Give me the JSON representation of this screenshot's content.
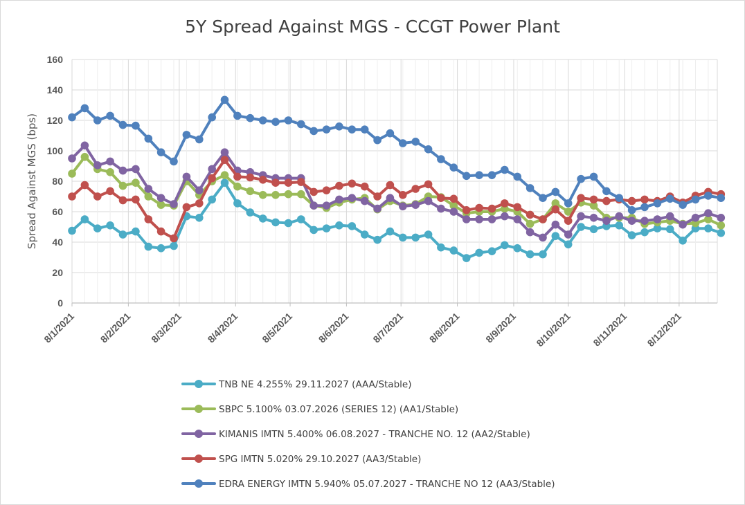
{
  "chart_data": {
    "type": "line",
    "title": "5Y Spread Against MGS - CCGT Power Plant",
    "ylabel": "Spread Against MGS (bps)",
    "xlabel": "",
    "ylim": [
      0,
      160
    ],
    "yticks": [
      "0",
      "20",
      "40",
      "60",
      "80",
      "100",
      "120",
      "140",
      "160"
    ],
    "xticks": [
      "8/1/2021",
      "8/2/2021",
      "8/3/2021",
      "8/4/2021",
      "8/5/2021",
      "8/6/2021",
      "8/7/2021",
      "8/8/2021",
      "8/9/2021",
      "8/10/2021",
      "8/11/2021",
      "8/12/2021"
    ],
    "grid": true,
    "legend_position": "bottom",
    "x_start": "2021-01-08",
    "x_end": "2021-12-29",
    "x_tick_dates": [
      "2021-01-08",
      "2021-02-08",
      "2021-03-08",
      "2021-04-08",
      "2021-05-08",
      "2021-06-08",
      "2021-07-08",
      "2021-08-08",
      "2021-09-08",
      "2021-10-08",
      "2021-11-08",
      "2021-12-08"
    ],
    "series": [
      {
        "name": "TNB NE 4.255% 29.11.2027 (AAA/Stable)",
        "color": "#4bacc6",
        "points": [
          [
            "2021-01-08",
            47.5
          ],
          [
            "2021-01-15",
            55
          ],
          [
            "2021-01-22",
            49
          ],
          [
            "2021-01-29",
            51
          ],
          [
            "2021-02-05",
            45
          ],
          [
            "2021-02-12",
            47
          ],
          [
            "2021-02-19",
            37
          ],
          [
            "2021-02-26",
            36
          ],
          [
            "2021-03-05",
            37.5
          ],
          [
            "2021-03-12",
            57
          ],
          [
            "2021-03-19",
            56
          ],
          [
            "2021-03-26",
            68
          ],
          [
            "2021-04-02",
            79
          ],
          [
            "2021-04-09",
            65.5
          ],
          [
            "2021-04-16",
            59.5
          ],
          [
            "2021-04-23",
            55.5
          ],
          [
            "2021-04-30",
            53
          ],
          [
            "2021-05-07",
            52.5
          ],
          [
            "2021-05-14",
            55
          ],
          [
            "2021-05-21",
            48
          ],
          [
            "2021-05-28",
            49
          ],
          [
            "2021-06-04",
            51
          ],
          [
            "2021-06-11",
            50.5
          ],
          [
            "2021-06-18",
            45
          ],
          [
            "2021-06-25",
            41.5
          ],
          [
            "2021-07-02",
            47
          ],
          [
            "2021-07-09",
            43
          ],
          [
            "2021-07-16",
            43
          ],
          [
            "2021-07-23",
            45
          ],
          [
            "2021-07-30",
            36.5
          ],
          [
            "2021-08-06",
            34.5
          ],
          [
            "2021-08-13",
            29.5
          ],
          [
            "2021-08-20",
            33
          ],
          [
            "2021-08-27",
            34
          ],
          [
            "2021-09-03",
            38
          ],
          [
            "2021-09-10",
            36
          ],
          [
            "2021-09-17",
            32
          ],
          [
            "2021-09-24",
            32
          ],
          [
            "2021-10-01",
            44
          ],
          [
            "2021-10-08",
            38.5
          ],
          [
            "2021-10-15",
            50
          ],
          [
            "2021-10-22",
            48.5
          ],
          [
            "2021-10-29",
            50.5
          ],
          [
            "2021-11-05",
            51
          ],
          [
            "2021-11-12",
            44.5
          ],
          [
            "2021-11-19",
            46.5
          ],
          [
            "2021-11-26",
            49
          ],
          [
            "2021-12-03",
            48.5
          ],
          [
            "2021-12-10",
            41
          ],
          [
            "2021-12-17",
            49
          ],
          [
            "2021-12-24",
            49
          ],
          [
            "2021-12-31",
            46
          ]
        ]
      },
      {
        "name": "SBPC 5.100% 03.07.2026 (SERIES 12) (AA1/Stable)",
        "color": "#9bbb59",
        "points": [
          [
            "2021-01-08",
            85
          ],
          [
            "2021-01-15",
            96
          ],
          [
            "2021-01-22",
            88
          ],
          [
            "2021-01-29",
            86
          ],
          [
            "2021-02-05",
            77
          ],
          [
            "2021-02-12",
            79
          ],
          [
            "2021-02-19",
            70
          ],
          [
            "2021-02-26",
            64.5
          ],
          [
            "2021-03-05",
            64
          ],
          [
            "2021-03-12",
            80
          ],
          [
            "2021-03-19",
            71
          ],
          [
            "2021-03-26",
            80
          ],
          [
            "2021-04-02",
            84
          ],
          [
            "2021-04-09",
            76.5
          ],
          [
            "2021-04-16",
            73.5
          ],
          [
            "2021-04-23",
            71
          ],
          [
            "2021-04-30",
            71
          ],
          [
            "2021-05-07",
            71.5
          ],
          [
            "2021-05-14",
            71.5
          ],
          [
            "2021-05-21",
            64
          ],
          [
            "2021-05-28",
            62.5
          ],
          [
            "2021-06-04",
            66
          ],
          [
            "2021-06-11",
            68
          ],
          [
            "2021-06-18",
            69
          ],
          [
            "2021-06-25",
            61.5
          ],
          [
            "2021-07-02",
            67
          ],
          [
            "2021-07-09",
            64
          ],
          [
            "2021-07-16",
            65
          ],
          [
            "2021-07-23",
            70
          ],
          [
            "2021-07-30",
            69.5
          ],
          [
            "2021-08-06",
            64
          ],
          [
            "2021-08-13",
            59
          ],
          [
            "2021-08-20",
            60
          ],
          [
            "2021-08-27",
            60
          ],
          [
            "2021-09-03",
            62
          ],
          [
            "2021-09-10",
            60
          ],
          [
            "2021-09-17",
            52
          ],
          [
            "2021-09-24",
            55
          ],
          [
            "2021-10-01",
            65.5
          ],
          [
            "2021-10-08",
            60
          ],
          [
            "2021-10-15",
            66
          ],
          [
            "2021-10-22",
            64
          ],
          [
            "2021-10-29",
            56
          ],
          [
            "2021-11-05",
            56
          ],
          [
            "2021-11-12",
            56
          ],
          [
            "2021-11-19",
            52
          ],
          [
            "2021-11-26",
            53
          ],
          [
            "2021-12-03",
            54
          ],
          [
            "2021-12-10",
            52
          ],
          [
            "2021-12-17",
            52.5
          ],
          [
            "2021-12-24",
            55
          ],
          [
            "2021-12-31",
            51
          ]
        ]
      },
      {
        "name": "KIMANIS IMTN 5.400% 06.08.2027 - TRANCHE NO. 12 (AA2/Stable)",
        "color": "#8064a2",
        "points": [
          [
            "2021-01-08",
            95
          ],
          [
            "2021-01-15",
            103.5
          ],
          [
            "2021-01-22",
            90.5
          ],
          [
            "2021-01-29",
            93
          ],
          [
            "2021-02-05",
            87
          ],
          [
            "2021-02-12",
            88
          ],
          [
            "2021-02-19",
            75
          ],
          [
            "2021-02-26",
            69
          ],
          [
            "2021-03-05",
            65
          ],
          [
            "2021-03-12",
            83
          ],
          [
            "2021-03-19",
            74
          ],
          [
            "2021-03-26",
            88
          ],
          [
            "2021-04-02",
            99
          ],
          [
            "2021-04-09",
            87
          ],
          [
            "2021-04-16",
            86
          ],
          [
            "2021-04-23",
            84
          ],
          [
            "2021-04-30",
            82
          ],
          [
            "2021-05-07",
            82
          ],
          [
            "2021-05-14",
            82
          ],
          [
            "2021-05-21",
            64
          ],
          [
            "2021-05-28",
            64
          ],
          [
            "2021-06-04",
            68
          ],
          [
            "2021-06-11",
            69
          ],
          [
            "2021-06-18",
            67
          ],
          [
            "2021-06-25",
            62
          ],
          [
            "2021-07-02",
            69
          ],
          [
            "2021-07-09",
            63.5
          ],
          [
            "2021-07-16",
            64.5
          ],
          [
            "2021-07-23",
            67
          ],
          [
            "2021-07-30",
            62
          ],
          [
            "2021-08-06",
            60
          ],
          [
            "2021-08-13",
            55
          ],
          [
            "2021-08-20",
            55
          ],
          [
            "2021-08-27",
            55
          ],
          [
            "2021-09-03",
            57
          ],
          [
            "2021-09-10",
            55
          ],
          [
            "2021-09-17",
            46.5
          ],
          [
            "2021-09-24",
            43
          ],
          [
            "2021-10-01",
            51.5
          ],
          [
            "2021-10-08",
            45
          ],
          [
            "2021-10-15",
            57
          ],
          [
            "2021-10-22",
            56
          ],
          [
            "2021-10-29",
            54
          ],
          [
            "2021-11-05",
            57
          ],
          [
            "2021-11-12",
            54
          ],
          [
            "2021-11-19",
            54
          ],
          [
            "2021-11-26",
            55
          ],
          [
            "2021-12-03",
            57
          ],
          [
            "2021-12-10",
            51.5
          ],
          [
            "2021-12-17",
            56
          ],
          [
            "2021-12-24",
            59
          ],
          [
            "2021-12-31",
            56
          ]
        ]
      },
      {
        "name": "SPG IMTN 5.020% 29.10.2027 (AA3/Stable)",
        "color": "#c0504d",
        "points": [
          [
            "2021-01-08",
            70
          ],
          [
            "2021-01-15",
            77.5
          ],
          [
            "2021-01-22",
            70
          ],
          [
            "2021-01-29",
            73.5
          ],
          [
            "2021-02-05",
            67.5
          ],
          [
            "2021-02-12",
            68
          ],
          [
            "2021-02-19",
            55
          ],
          [
            "2021-02-26",
            47
          ],
          [
            "2021-03-05",
            42.5
          ],
          [
            "2021-03-12",
            63
          ],
          [
            "2021-03-19",
            65.5
          ],
          [
            "2021-03-26",
            82
          ],
          [
            "2021-04-02",
            94
          ],
          [
            "2021-04-09",
            83
          ],
          [
            "2021-04-16",
            82.5
          ],
          [
            "2021-04-23",
            81
          ],
          [
            "2021-04-30",
            79
          ],
          [
            "2021-05-07",
            79
          ],
          [
            "2021-05-14",
            79.5
          ],
          [
            "2021-05-21",
            73
          ],
          [
            "2021-05-28",
            74
          ],
          [
            "2021-06-04",
            77
          ],
          [
            "2021-06-11",
            78.5
          ],
          [
            "2021-06-18",
            76.5
          ],
          [
            "2021-06-25",
            70
          ],
          [
            "2021-07-02",
            77.5
          ],
          [
            "2021-07-09",
            71
          ],
          [
            "2021-07-16",
            75
          ],
          [
            "2021-07-23",
            78
          ],
          [
            "2021-07-30",
            69
          ],
          [
            "2021-08-06",
            68.5
          ],
          [
            "2021-08-13",
            61
          ],
          [
            "2021-08-20",
            62.5
          ],
          [
            "2021-08-27",
            62
          ],
          [
            "2021-09-03",
            65.5
          ],
          [
            "2021-09-10",
            63
          ],
          [
            "2021-09-17",
            58
          ],
          [
            "2021-09-24",
            55
          ],
          [
            "2021-10-01",
            61.5
          ],
          [
            "2021-10-08",
            54
          ],
          [
            "2021-10-15",
            69
          ],
          [
            "2021-10-22",
            68
          ],
          [
            "2021-10-29",
            67
          ],
          [
            "2021-11-05",
            68
          ],
          [
            "2021-11-12",
            67
          ],
          [
            "2021-11-19",
            68
          ],
          [
            "2021-11-26",
            67
          ],
          [
            "2021-12-03",
            70
          ],
          [
            "2021-12-10",
            66
          ],
          [
            "2021-12-17",
            70.5
          ],
          [
            "2021-12-24",
            73
          ],
          [
            "2021-12-31",
            71.5
          ]
        ]
      },
      {
        "name": "EDRA ENERGY IMTN 5.940% 05.07.2027 - TRANCHE NO 12 (AA3/Stable)",
        "color": "#4f81bd",
        "points": [
          [
            "2021-01-08",
            122
          ],
          [
            "2021-01-15",
            128
          ],
          [
            "2021-01-22",
            120
          ],
          [
            "2021-01-29",
            123
          ],
          [
            "2021-02-05",
            117
          ],
          [
            "2021-02-12",
            116.5
          ],
          [
            "2021-02-19",
            108
          ],
          [
            "2021-02-26",
            99
          ],
          [
            "2021-03-05",
            93
          ],
          [
            "2021-03-12",
            110.5
          ],
          [
            "2021-03-19",
            107.5
          ],
          [
            "2021-03-26",
            122
          ],
          [
            "2021-04-02",
            133.5
          ],
          [
            "2021-04-09",
            123
          ],
          [
            "2021-04-16",
            121.5
          ],
          [
            "2021-04-23",
            120
          ],
          [
            "2021-04-30",
            119
          ],
          [
            "2021-05-07",
            120
          ],
          [
            "2021-05-14",
            117.5
          ],
          [
            "2021-05-21",
            113
          ],
          [
            "2021-05-28",
            114
          ],
          [
            "2021-06-04",
            116
          ],
          [
            "2021-06-11",
            114
          ],
          [
            "2021-06-18",
            114
          ],
          [
            "2021-06-25",
            107
          ],
          [
            "2021-07-02",
            111.5
          ],
          [
            "2021-07-09",
            105
          ],
          [
            "2021-07-16",
            106
          ],
          [
            "2021-07-23",
            101
          ],
          [
            "2021-07-30",
            94.5
          ],
          [
            "2021-08-06",
            89
          ],
          [
            "2021-08-13",
            83.5
          ],
          [
            "2021-08-20",
            84
          ],
          [
            "2021-08-27",
            84
          ],
          [
            "2021-09-03",
            87.5
          ],
          [
            "2021-09-10",
            83
          ],
          [
            "2021-09-17",
            75.5
          ],
          [
            "2021-09-24",
            69
          ],
          [
            "2021-10-01",
            73
          ],
          [
            "2021-10-08",
            65.5
          ],
          [
            "2021-10-15",
            81.5
          ],
          [
            "2021-10-22",
            83
          ],
          [
            "2021-10-29",
            73.5
          ],
          [
            "2021-11-05",
            69
          ],
          [
            "2021-11-12",
            61
          ],
          [
            "2021-11-19",
            63
          ],
          [
            "2021-11-26",
            65.5
          ],
          [
            "2021-12-03",
            68.5
          ],
          [
            "2021-12-10",
            64.5
          ],
          [
            "2021-12-17",
            68
          ],
          [
            "2021-12-24",
            70.5
          ],
          [
            "2021-12-31",
            69
          ]
        ]
      }
    ]
  }
}
